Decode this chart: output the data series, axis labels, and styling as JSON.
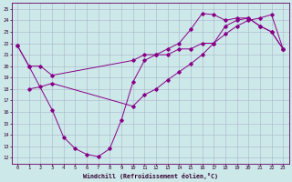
{
  "xlabel": "Windchill (Refroidissement éolien,°C)",
  "background_color": "#cce8e8",
  "grid_color": "#aab4cc",
  "line_color": "#880088",
  "xlim": [
    -0.5,
    23.5
  ],
  "ylim": [
    11.5,
    25.5
  ],
  "xticks": [
    0,
    1,
    2,
    3,
    4,
    5,
    6,
    7,
    8,
    9,
    10,
    11,
    12,
    13,
    14,
    15,
    16,
    17,
    18,
    19,
    20,
    21,
    22,
    23
  ],
  "yticks": [
    12,
    13,
    14,
    15,
    16,
    17,
    18,
    19,
    20,
    21,
    22,
    23,
    24,
    25
  ],
  "series1_x": [
    0,
    1,
    2,
    3,
    10,
    11,
    12,
    13,
    14,
    15,
    16,
    17,
    18,
    19,
    20,
    21,
    22,
    23
  ],
  "series1_y": [
    21.8,
    20.0,
    20.0,
    19.2,
    20.5,
    21.0,
    21.0,
    21.5,
    22.0,
    23.2,
    24.6,
    24.5,
    24.0,
    24.2,
    24.2,
    23.5,
    23.0,
    21.5
  ],
  "series2_x": [
    0,
    1,
    3,
    4,
    5,
    6,
    7,
    8,
    9,
    10,
    11,
    12,
    13,
    14,
    15,
    16,
    17,
    18,
    19,
    20,
    21,
    22,
    23
  ],
  "series2_y": [
    21.8,
    20.0,
    16.2,
    13.8,
    12.8,
    12.3,
    12.1,
    12.8,
    15.3,
    18.6,
    20.5,
    21.0,
    21.0,
    21.5,
    21.5,
    22.0,
    22.0,
    23.5,
    24.0,
    24.2,
    23.5,
    23.0,
    21.5
  ],
  "series3_x": [
    1,
    2,
    3,
    10,
    11,
    12,
    13,
    14,
    15,
    16,
    17,
    18,
    19,
    20,
    21,
    22,
    23
  ],
  "series3_y": [
    18.0,
    18.2,
    18.5,
    16.5,
    17.5,
    18.0,
    18.8,
    19.5,
    20.2,
    21.0,
    22.0,
    22.8,
    23.5,
    24.0,
    24.2,
    24.5,
    21.5
  ]
}
